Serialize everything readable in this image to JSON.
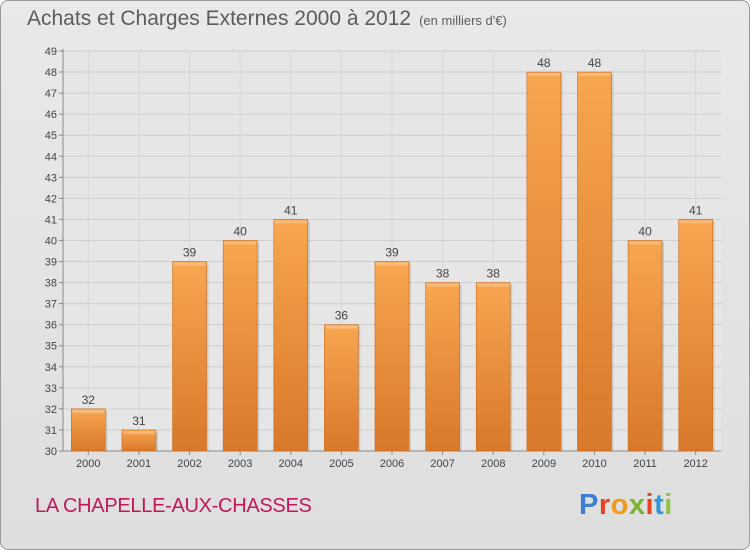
{
  "header": {
    "title": "Achats et Charges Externes 2000 à 2012",
    "subtitle": "(en milliers d'€)"
  },
  "footer": {
    "commune": "LA CHAPELLE-AUX-CHASSES",
    "logo": "Proxiti"
  },
  "colors": {
    "bar_top": "#f7a64f",
    "bar_bottom": "#d9782a",
    "commune_text": "#c2185b",
    "logo_letters": [
      "#3a7fd1",
      "#e8411f",
      "#f29a19",
      "#78b52f",
      "#e8411f",
      "#2f9ad6",
      "#8cc63f"
    ]
  },
  "chart_data": {
    "type": "bar",
    "title": "Achats et Charges Externes 2000 à 2012",
    "subtitle": "(en milliers d'€)",
    "categories": [
      "2000",
      "2001",
      "2002",
      "2003",
      "2004",
      "2005",
      "2006",
      "2007",
      "2008",
      "2009",
      "2010",
      "2011",
      "2012"
    ],
    "values": [
      32,
      31,
      39,
      40,
      41,
      36,
      39,
      38,
      38,
      48,
      48,
      40,
      41
    ],
    "ylim": [
      30,
      49
    ],
    "yticks": [
      30,
      31,
      32,
      33,
      34,
      35,
      36,
      37,
      38,
      39,
      40,
      41,
      42,
      43,
      44,
      45,
      46,
      47,
      48,
      49
    ],
    "grid": true,
    "data_labels": true
  }
}
